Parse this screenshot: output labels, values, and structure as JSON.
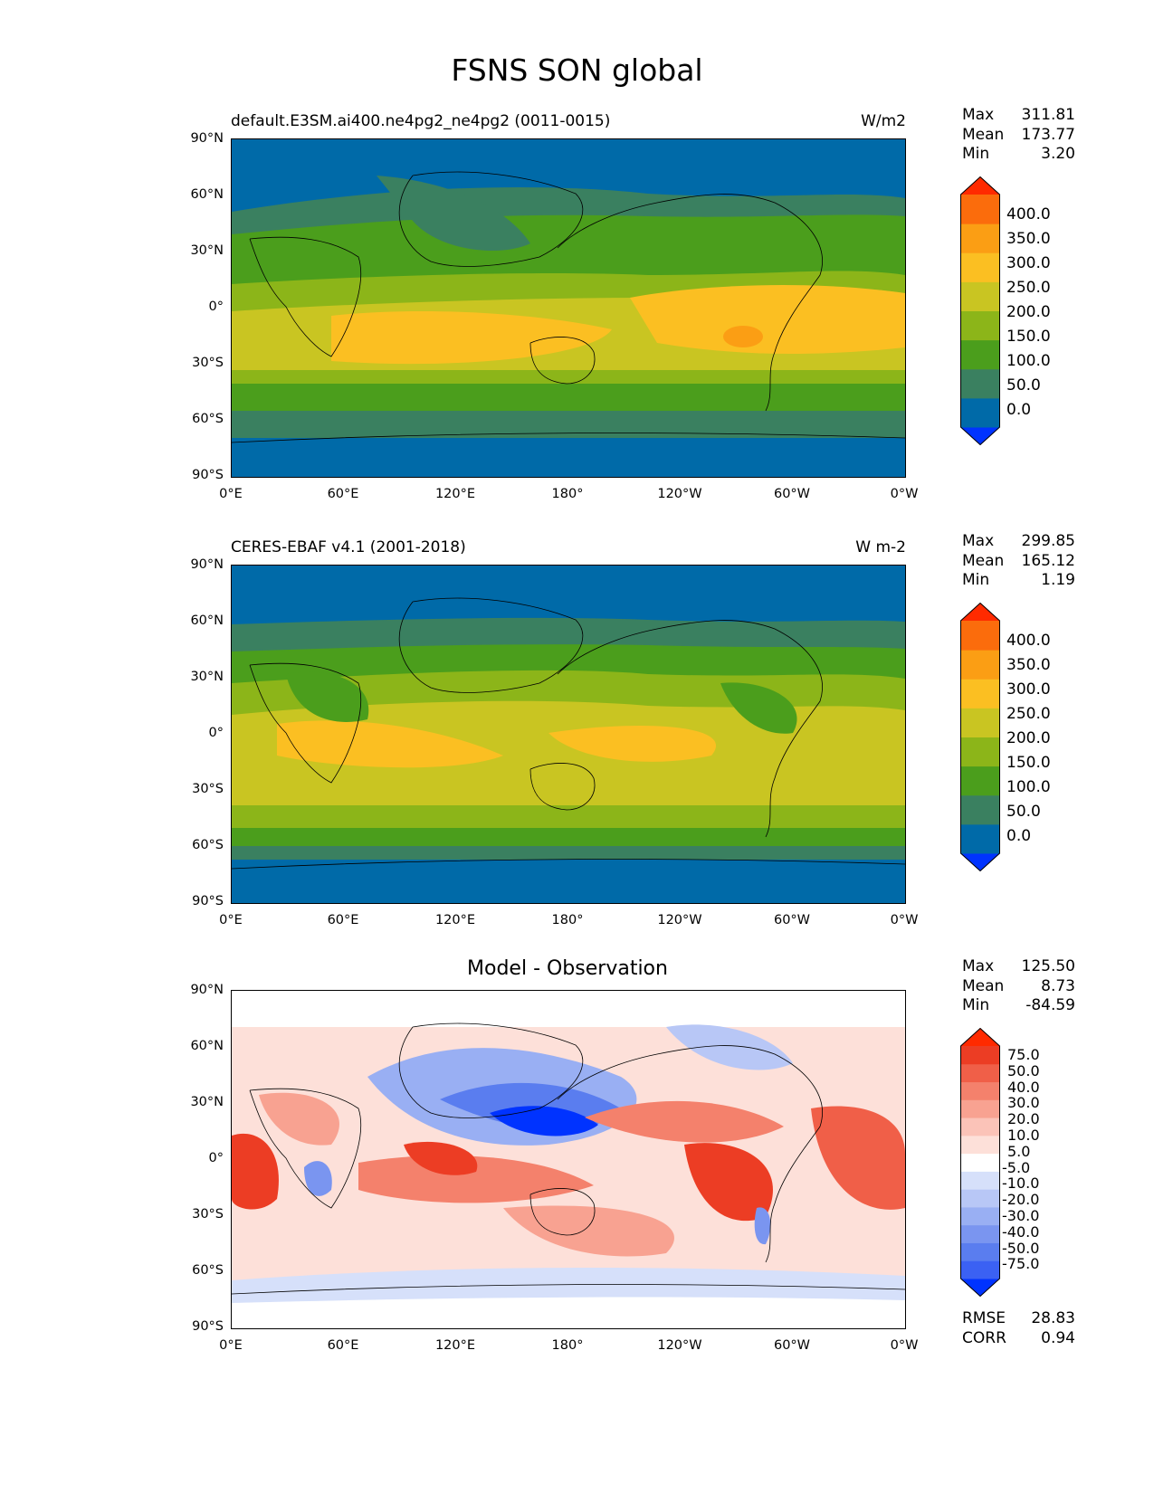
{
  "title": "FSNS SON global",
  "panels": [
    {
      "id": "model",
      "title_left": "default.E3SM.ai400.ne4pg2_ne4pg2 (0011-0015)",
      "title_right": "W/m2",
      "stats": {
        "max_label": "Max",
        "max": "311.81",
        "mean_label": "Mean",
        "mean": "173.77",
        "min_label": "Min",
        "min": "3.20"
      },
      "colorbar_labels": [
        "400.0",
        "350.0",
        "300.0",
        "250.0",
        "200.0",
        "150.0",
        "100.0",
        "50.0",
        "0.0"
      ]
    },
    {
      "id": "obs",
      "title_left": "CERES-EBAF v4.1 (2001-2018)",
      "title_right": "W m-2",
      "stats": {
        "max_label": "Max",
        "max": "299.85",
        "mean_label": "Mean",
        "mean": "165.12",
        "min_label": "Min",
        "min": "1.19"
      },
      "colorbar_labels": [
        "400.0",
        "350.0",
        "300.0",
        "250.0",
        "200.0",
        "150.0",
        "100.0",
        "50.0",
        "0.0"
      ]
    },
    {
      "id": "diff",
      "title_center": "Model - Observation",
      "stats": {
        "max_label": "Max",
        "max": "125.50",
        "mean_label": "Mean",
        "mean": "8.73",
        "min_label": "Min",
        "min": "-84.59"
      },
      "colorbar_labels": [
        "75.0",
        "50.0",
        "40.0",
        "30.0",
        "20.0",
        "10.0",
        "5.0",
        "-5.0",
        "-10.0",
        "-20.0",
        "-30.0",
        "-40.0",
        "-50.0",
        "-75.0"
      ],
      "metrics": {
        "rmse_label": "RMSE",
        "rmse": "28.83",
        "corr_label": "CORR",
        "corr": "0.94"
      }
    }
  ],
  "axes": {
    "y_ticks": [
      "90°N",
      "60°N",
      "30°N",
      "0°",
      "30°S",
      "60°S",
      "90°S"
    ],
    "x_ticks": [
      "0°E",
      "60°E",
      "120°E",
      "180°",
      "120°W",
      "60°W",
      "0°W"
    ]
  },
  "colors": {
    "seq": [
      "#0033ff",
      "#006aa8",
      "#3a8060",
      "#4b9e1c",
      "#8cb519",
      "#c9c522",
      "#fbbf22",
      "#fb9e14",
      "#fb6c0c",
      "#ff2a00"
    ],
    "div": [
      "#0033ff",
      "#3b61f3",
      "#5a7def",
      "#7a95f0",
      "#99aff3",
      "#b8c7f6",
      "#d6e0fa",
      "#ffffff",
      "#fde0d9",
      "#fbc3b8",
      "#f8a291",
      "#f4816c",
      "#f05f48",
      "#ec3d24",
      "#ff2a00"
    ]
  }
}
